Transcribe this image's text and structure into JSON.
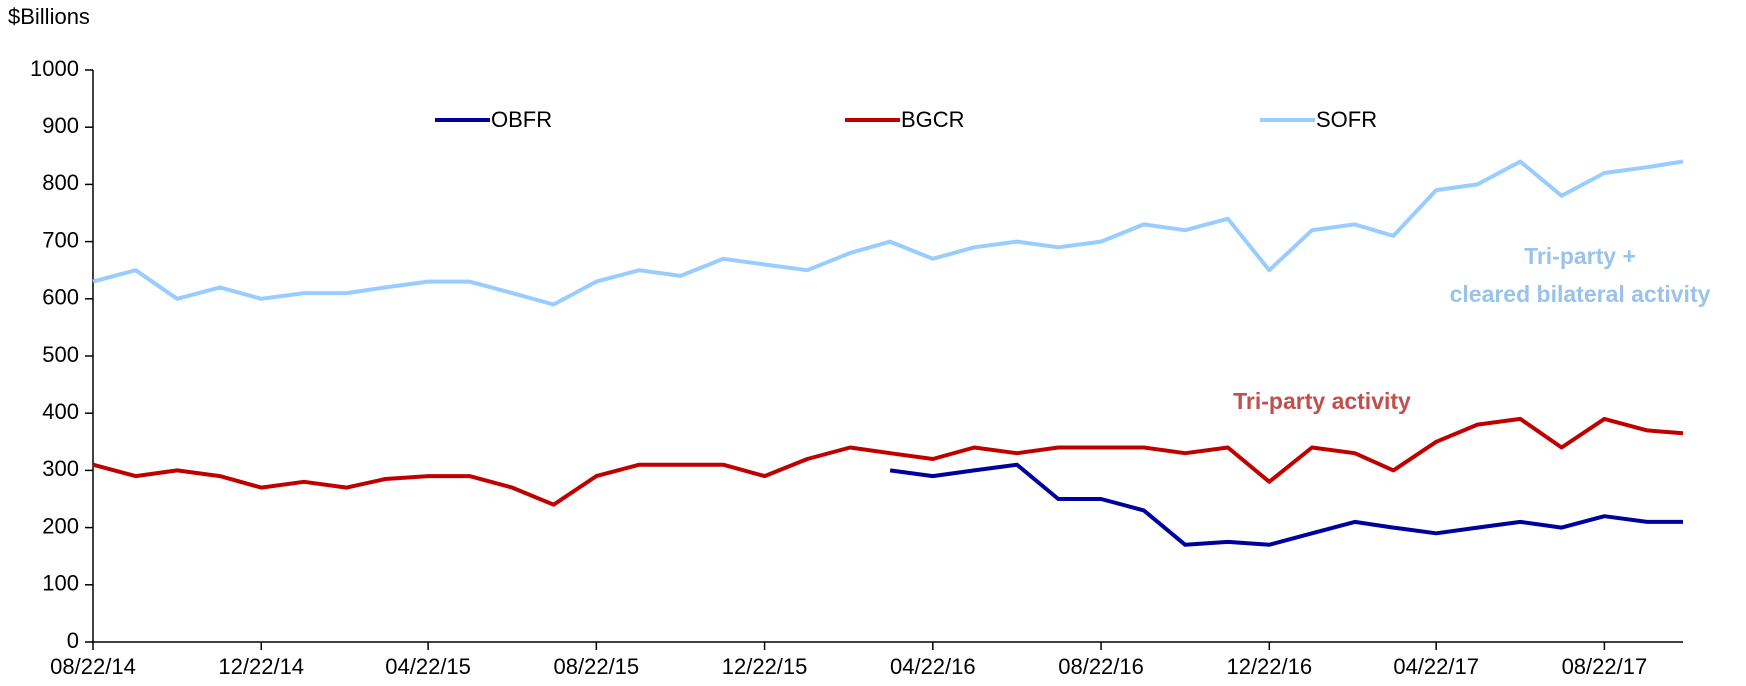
{
  "chart_data": {
    "type": "line",
    "y_label": "$Billions",
    "x": [
      "2014-08-22",
      "2014-09-22",
      "2014-10-22",
      "2014-11-22",
      "2014-12-22",
      "2015-01-22",
      "2015-02-22",
      "2015-03-22",
      "2015-04-22",
      "2015-05-22",
      "2015-06-22",
      "2015-07-22",
      "2015-08-22",
      "2015-09-22",
      "2015-10-22",
      "2015-11-22",
      "2015-12-22",
      "2016-01-22",
      "2016-02-22",
      "2016-03-22",
      "2016-04-22",
      "2016-05-22",
      "2016-06-22",
      "2016-07-22",
      "2016-08-22",
      "2016-09-22",
      "2016-10-22",
      "2016-11-22",
      "2016-12-22",
      "2017-01-22",
      "2017-02-22",
      "2017-03-22",
      "2017-04-22",
      "2017-05-22",
      "2017-06-22",
      "2017-07-22",
      "2017-08-22",
      "2017-09-22",
      "2017-10-18"
    ],
    "series": [
      {
        "name": "OBFR",
        "color": "#00009c",
        "values": [
          null,
          null,
          null,
          null,
          null,
          null,
          null,
          null,
          null,
          null,
          null,
          null,
          null,
          null,
          null,
          null,
          null,
          null,
          null,
          300,
          290,
          300,
          310,
          250,
          250,
          230,
          170,
          175,
          170,
          190,
          210,
          200,
          190,
          200,
          210,
          200,
          220,
          210,
          210
        ]
      },
      {
        "name": "BGCR",
        "color": "#c00000",
        "values": [
          310,
          290,
          300,
          290,
          270,
          280,
          270,
          285,
          290,
          290,
          270,
          240,
          290,
          310,
          310,
          310,
          290,
          320,
          340,
          330,
          320,
          340,
          330,
          340,
          340,
          340,
          330,
          340,
          280,
          340,
          330,
          300,
          350,
          380,
          390,
          340,
          390,
          370,
          365
        ]
      },
      {
        "name": "SOFR",
        "color": "#99ccff",
        "values": [
          630,
          650,
          600,
          620,
          600,
          610,
          610,
          620,
          630,
          630,
          610,
          590,
          630,
          650,
          640,
          670,
          660,
          650,
          680,
          700,
          670,
          690,
          700,
          690,
          700,
          730,
          720,
          740,
          650,
          720,
          730,
          710,
          790,
          800,
          840,
          780,
          820,
          830,
          840
        ]
      }
    ],
    "xlim": [
      "2014-08-22",
      "2017-10-18"
    ],
    "xticks": [
      {
        "value": "2014-08-22",
        "label": "08/22/14"
      },
      {
        "value": "2014-12-22",
        "label": "12/22/14"
      },
      {
        "value": "2015-04-22",
        "label": "04/22/15"
      },
      {
        "value": "2015-08-22",
        "label": "08/22/15"
      },
      {
        "value": "2015-12-22",
        "label": "12/22/15"
      },
      {
        "value": "2016-04-22",
        "label": "04/22/16"
      },
      {
        "value": "2016-08-22",
        "label": "08/22/16"
      },
      {
        "value": "2016-12-22",
        "label": "12/22/16"
      },
      {
        "value": "2017-04-22",
        "label": "04/22/17"
      },
      {
        "value": "2017-08-22",
        "label": "08/22/17"
      }
    ],
    "ylim": [
      0,
      1000
    ],
    "yticks": [
      0,
      100,
      200,
      300,
      400,
      500,
      600,
      700,
      800,
      900,
      1000
    ],
    "legend": "top",
    "annotations": [
      {
        "text": "Tri-party +",
        "color": "#99c2ec"
      },
      {
        "text": "cleared bilateral activity",
        "color": "#99c2ec"
      },
      {
        "text": "Tri-party activity",
        "color": "#c0504d"
      }
    ]
  }
}
